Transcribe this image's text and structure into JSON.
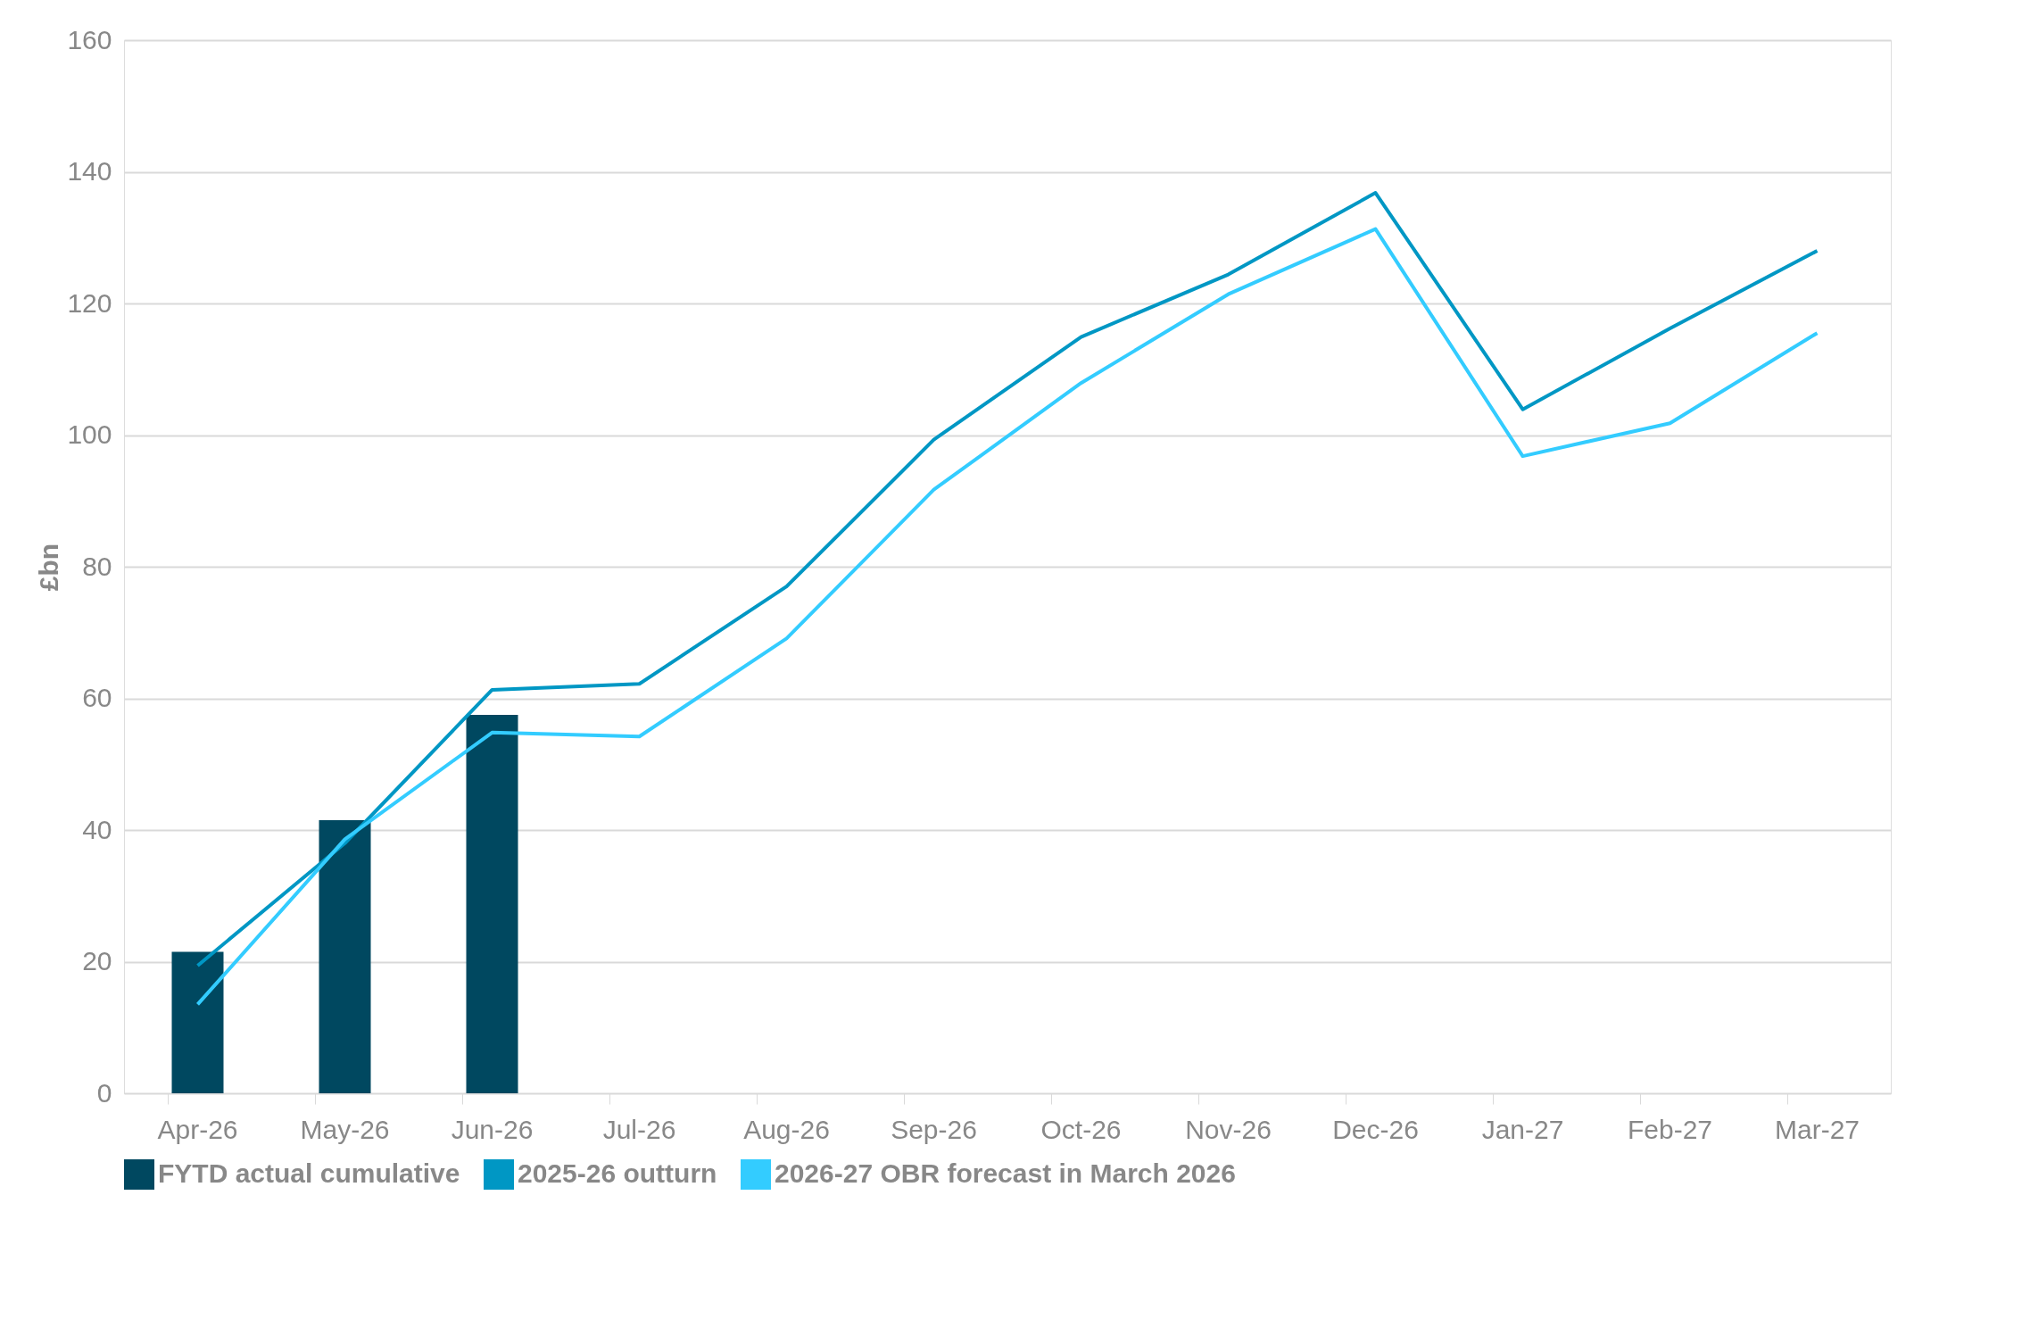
{
  "chart_data": {
    "type": "bar",
    "ylabel": "£bn",
    "categories": [
      "Apr-26",
      "May-26",
      "Jun-26",
      "Jul-26",
      "Aug-26",
      "Sep-26",
      "Oct-26",
      "Nov-26",
      "Dec-26",
      "Jan-27",
      "Feb-27",
      "Mar-27"
    ],
    "series": [
      {
        "name": "FYTD actual cumulative",
        "color": "#004860",
        "values": [
          21.5,
          41.5,
          57.5,
          null,
          null,
          null,
          null,
          null,
          null,
          null,
          null,
          null
        ]
      },
      {
        "name": "2025-26 outturn",
        "type": "line",
        "color": "#0097c4",
        "values": [
          19.4,
          38,
          61.3,
          62.2,
          77,
          99.3,
          114.9,
          124.4,
          136.8,
          103.9,
          116.2,
          128
        ]
      },
      {
        "name": "2026-27 OBR forecast in March 2026",
        "type": "line",
        "color": "#33ccff",
        "values": [
          13.5,
          38.6,
          54.8,
          54.2,
          69.1,
          91.7,
          107.9,
          121.4,
          131.3,
          96.8,
          101.8,
          115.5
        ]
      }
    ],
    "ylim": [
      0,
      160
    ],
    "yticks": [
      0,
      20,
      40,
      60,
      80,
      100,
      120,
      140,
      160
    ],
    "grid": "y",
    "legend": "bottom",
    "marker": "none",
    "line_style": "solid"
  }
}
